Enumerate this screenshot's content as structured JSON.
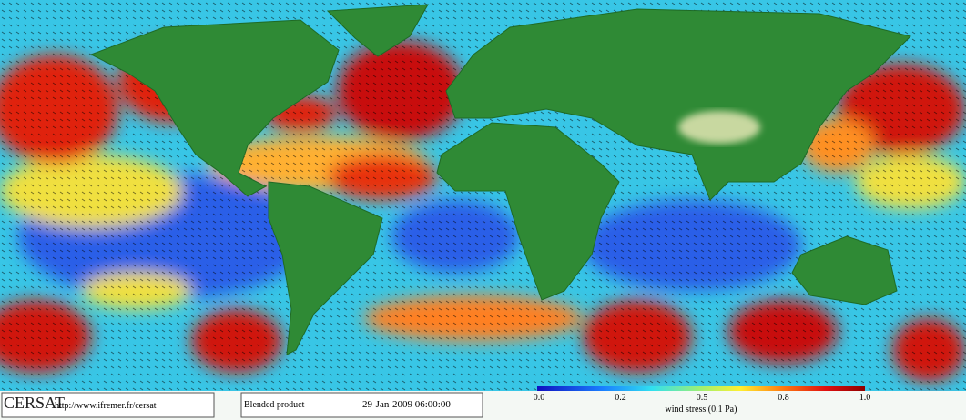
{
  "logo": {
    "name": "CERSAT",
    "url": "http://www.ifremer.fr/cersat"
  },
  "product": {
    "name": "Blended product",
    "date": "29-Jan-2009 06:00:00"
  },
  "colorbar": {
    "tick_labels": [
      "0.0",
      "0.2",
      "0.5",
      "0.8",
      "1.0"
    ],
    "label": "wind stress (0.1 Pa)"
  }
}
